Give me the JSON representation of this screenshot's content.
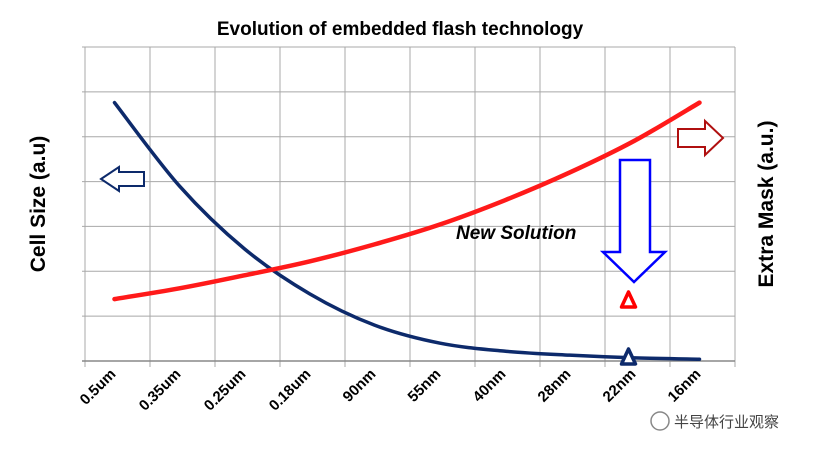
{
  "chart_data": {
    "type": "line",
    "title": "Evolution of embedded flash technology",
    "ylabel": "Cell Size (a.u)",
    "y2label": "Extra Mask (a.u.)",
    "xlabel": "",
    "categories": [
      "0.5um",
      "0.35um",
      "0.25um",
      "0.18um",
      "90nm",
      "55nm",
      "40nm",
      "28nm",
      "22nm",
      "16nm"
    ],
    "ylim": [
      0,
      7
    ],
    "grid": true,
    "legend": "none",
    "series": [
      {
        "color": "#0d2a6b",
        "values": [
          5.76,
          3.9,
          2.5,
          1.5,
          0.8,
          0.4,
          0.22,
          0.13,
          0.07,
          0.04
        ]
      },
      {
        "color": "#ff1a1a",
        "values": [
          1.38,
          1.62,
          1.91,
          2.22,
          2.6,
          3.04,
          3.58,
          4.2,
          4.91,
          5.76
        ]
      }
    ],
    "markers": [
      {
        "category": "22nm",
        "value": 1.36,
        "shape": "triangle",
        "color": "#ff0000"
      },
      {
        "category": "22nm",
        "value": 0.09,
        "shape": "triangle",
        "color": "#0d2a6b"
      }
    ],
    "annotations": {
      "new_solution": "New Solution",
      "left_arrow_color": "#0d2a6b",
      "right_arrow_color": "#b01010",
      "down_arrow_color": "#0000ff"
    }
  },
  "watermark": "半导体行业观察"
}
